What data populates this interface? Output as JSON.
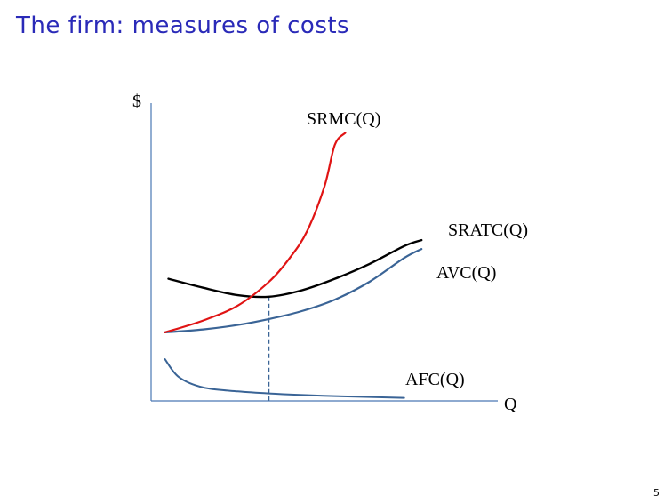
{
  "slide": {
    "title": "The firm: measures of costs",
    "page_number": "5"
  },
  "colors": {
    "title": "#2a2ab8",
    "axis": "#4a78b4",
    "srmc": "#e01414",
    "sratc": "#000000",
    "avc": "#3a6496",
    "afc": "#3a6496",
    "guide": "#3a6496"
  },
  "chart_data": {
    "type": "line",
    "title": "",
    "xlabel": "Q",
    "ylabel": "$",
    "xlim": [
      0,
      10
    ],
    "ylim": [
      0,
      10
    ],
    "grid": false,
    "legend": "none",
    "tick_labels": "none",
    "series": [
      {
        "name": "SRMC(Q)",
        "key": "srmc",
        "x": [
          0.4,
          1.5,
          2.5,
          3.4,
          4.0,
          4.5,
          5.0,
          5.3,
          5.6
        ],
        "y": [
          2.3,
          2.7,
          3.2,
          4.0,
          4.8,
          5.7,
          7.2,
          8.6,
          9.0
        ]
      },
      {
        "name": "SRATC(Q)",
        "key": "sratc",
        "x": [
          0.5,
          1.5,
          2.5,
          3.4,
          4.3,
          5.3,
          6.3,
          7.3,
          7.8
        ],
        "y": [
          4.1,
          3.8,
          3.55,
          3.5,
          3.7,
          4.1,
          4.6,
          5.2,
          5.4
        ]
      },
      {
        "name": "AVC(Q)",
        "key": "avc",
        "x": [
          0.4,
          1.5,
          2.5,
          3.4,
          4.3,
          5.3,
          6.3,
          7.3,
          7.8
        ],
        "y": [
          2.3,
          2.4,
          2.55,
          2.75,
          3.0,
          3.4,
          4.0,
          4.8,
          5.1
        ]
      },
      {
        "name": "AFC(Q)",
        "key": "afc",
        "x": [
          0.4,
          0.8,
          1.5,
          2.5,
          3.4,
          4.3,
          5.3,
          6.3,
          7.3
        ],
        "y": [
          1.4,
          0.8,
          0.45,
          0.32,
          0.25,
          0.2,
          0.16,
          0.13,
          0.1
        ]
      }
    ],
    "guide_line": {
      "x": 3.4,
      "y": 3.5
    }
  }
}
